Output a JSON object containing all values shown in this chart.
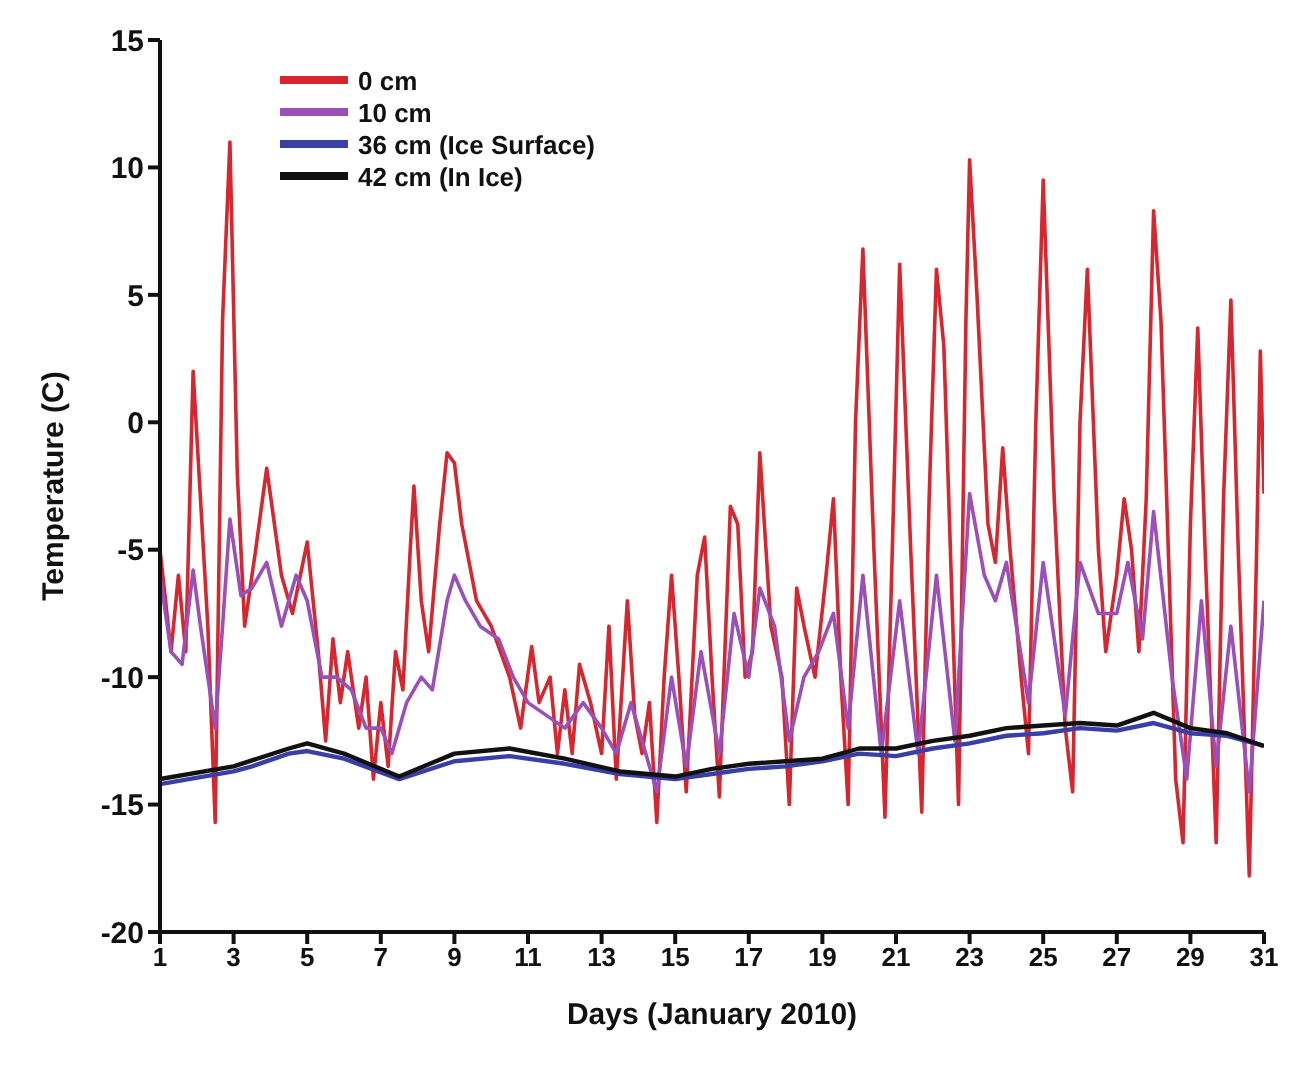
{
  "chart_data": {
    "type": "line",
    "xlabel": "Days (January 2010)",
    "ylabel": "Temperature (C)",
    "xlim": [
      1,
      31
    ],
    "xticks": [
      1,
      3,
      5,
      7,
      9,
      11,
      13,
      15,
      17,
      19,
      21,
      23,
      25,
      27,
      29,
      31
    ],
    "ylim": [
      -20,
      15
    ],
    "yticks": [
      -20,
      -15,
      -10,
      -5,
      0,
      5,
      10,
      15
    ],
    "grid": false,
    "legend": "top left",
    "marker": "none",
    "line_style": "solid",
    "series": [
      {
        "name": "0 cm",
        "color": "#d7262e",
        "x": [
          1,
          1.3,
          1.5,
          1.7,
          1.9,
          2.1,
          2.3,
          2.5,
          2.7,
          2.9,
          3.1,
          3.3,
          3.6,
          3.9,
          4.3,
          4.6,
          5,
          5.3,
          5.5,
          5.7,
          5.9,
          6.1,
          6.4,
          6.6,
          6.8,
          7,
          7.2,
          7.4,
          7.6,
          7.8,
          7.9,
          8.1,
          8.3,
          8.6,
          8.8,
          9,
          9.2,
          9.6,
          10,
          10.5,
          10.8,
          11.1,
          11.3,
          11.6,
          11.8,
          12,
          12.2,
          12.4,
          12.7,
          13,
          13.2,
          13.4,
          13.7,
          13.9,
          14.1,
          14.3,
          14.5,
          14.7,
          14.9,
          15.1,
          15.3,
          15.6,
          15.8,
          16,
          16.2,
          16.5,
          16.7,
          16.9,
          17.1,
          17.3,
          17.6,
          17.9,
          18.1,
          18.3,
          18.5,
          18.8,
          19.1,
          19.3,
          19.5,
          19.7,
          19.9,
          20.1,
          20.4,
          20.7,
          20.9,
          21.1,
          21.4,
          21.7,
          21.9,
          22.1,
          22.3,
          22.5,
          22.7,
          22.9,
          23,
          23.2,
          23.5,
          23.7,
          23.9,
          24.1,
          24.4,
          24.6,
          24.8,
          25,
          25.3,
          25.6,
          25.8,
          26,
          26.2,
          26.5,
          26.7,
          27,
          27.2,
          27.4,
          27.6,
          27.8,
          28,
          28.2,
          28.4,
          28.6,
          28.8,
          29,
          29.2,
          29.4,
          29.7,
          29.9,
          30.1,
          30.3,
          30.6,
          30.8,
          30.9,
          31
        ],
        "values": [
          -5,
          -9,
          -6,
          -9,
          2,
          -3,
          -8,
          -15.7,
          4,
          11,
          -2,
          -8,
          -5,
          -1.8,
          -6,
          -7.5,
          -4.7,
          -9,
          -12.5,
          -8.5,
          -11,
          -9,
          -12,
          -10,
          -14,
          -11,
          -13.5,
          -9,
          -10.5,
          -5,
          -2.5,
          -7,
          -9,
          -4,
          -1.2,
          -1.6,
          -4,
          -7,
          -8,
          -10,
          -12,
          -8.8,
          -11,
          -10,
          -13,
          -10.5,
          -13,
          -9.5,
          -11,
          -13,
          -8,
          -14,
          -7,
          -11.5,
          -13,
          -11,
          -15.7,
          -10,
          -6,
          -10,
          -14.5,
          -6,
          -4.5,
          -10,
          -14.7,
          -3.3,
          -4,
          -10,
          -9,
          -1.2,
          -8,
          -10,
          -15,
          -6.5,
          -8,
          -10,
          -6,
          -3,
          -10,
          -15,
          0,
          6.8,
          -5,
          -15.5,
          -5,
          6.2,
          -5,
          -15.3,
          -3,
          6,
          3,
          -6,
          -15,
          4,
          10.3,
          5,
          -4,
          -5.5,
          -1,
          -5,
          -10,
          -13,
          0,
          9.5,
          -3,
          -12,
          -14.5,
          0,
          6,
          -5,
          -9,
          -6,
          -3,
          -5,
          -9,
          -3,
          8.3,
          4,
          -5,
          -14,
          -16.5,
          -4,
          3.7,
          -5,
          -16.5,
          -3,
          4.8,
          -5,
          -17.8,
          -5,
          2.8,
          -2.8
        ]
      },
      {
        "name": "10 cm",
        "color": "#9b4fb8",
        "x": [
          1,
          1.3,
          1.6,
          1.9,
          2.1,
          2.5,
          2.7,
          2.9,
          3.2,
          3.5,
          3.9,
          4.3,
          4.7,
          5,
          5.4,
          5.8,
          6.2,
          6.6,
          7,
          7.3,
          7.7,
          8.1,
          8.4,
          8.8,
          9,
          9.3,
          9.7,
          10.2,
          10.6,
          11,
          11.5,
          12,
          12.5,
          13,
          13.4,
          13.8,
          14.2,
          14.5,
          14.9,
          15.3,
          15.7,
          16.2,
          16.6,
          17,
          17.3,
          17.7,
          18.1,
          18.5,
          18.9,
          19.3,
          19.7,
          20.1,
          20.6,
          21.1,
          21.6,
          22.1,
          22.6,
          23,
          23.4,
          23.7,
          24,
          24.6,
          25,
          25.6,
          26,
          26.5,
          27,
          27.3,
          27.7,
          28,
          28.5,
          28.9,
          29.3,
          29.7,
          30.1,
          30.6,
          31
        ],
        "values": [
          -6,
          -9,
          -9.5,
          -5.8,
          -8,
          -12,
          -8,
          -3.8,
          -6.8,
          -6.5,
          -5.5,
          -8,
          -6,
          -7,
          -10,
          -10,
          -10.5,
          -12,
          -12,
          -13,
          -11,
          -10,
          -10.5,
          -7,
          -6,
          -7,
          -8,
          -8.5,
          -10,
          -11,
          -11.5,
          -12,
          -11,
          -12,
          -13,
          -11,
          -13,
          -14.5,
          -10,
          -13.5,
          -9,
          -13,
          -7.5,
          -10,
          -6.5,
          -8,
          -12.5,
          -10,
          -9,
          -7.5,
          -12,
          -6,
          -13,
          -7,
          -13,
          -6,
          -12.5,
          -2.8,
          -6,
          -7,
          -5.5,
          -11,
          -5.5,
          -11.5,
          -5.5,
          -7.5,
          -7.5,
          -5.5,
          -8.5,
          -3.5,
          -10,
          -14,
          -7,
          -13.5,
          -8,
          -14.5,
          -7
        ]
      },
      {
        "name": "36 cm (Ice Surface)",
        "color": "#3a3fa8",
        "x": [
          1,
          3,
          3.5,
          4.5,
          5,
          6,
          7.5,
          9,
          10.5,
          12,
          13.5,
          15,
          16,
          17,
          18,
          19,
          20,
          21,
          22,
          23,
          24,
          25,
          26,
          27,
          28,
          29,
          30,
          31
        ],
        "values": [
          -14.2,
          -13.7,
          -13.5,
          -13,
          -12.9,
          -13.2,
          -14,
          -13.3,
          -13.1,
          -13.4,
          -13.8,
          -14,
          -13.8,
          -13.6,
          -13.5,
          -13.3,
          -13,
          -13.1,
          -12.8,
          -12.6,
          -12.3,
          -12.2,
          -12,
          -12.1,
          -11.8,
          -12.2,
          -12.3,
          -12.7
        ]
      },
      {
        "name": "42 cm (In Ice)",
        "color": "#111111",
        "x": [
          1,
          3,
          4.5,
          5,
          6,
          7.5,
          9,
          10.5,
          12,
          13.5,
          15,
          16,
          17,
          18,
          19,
          20,
          21,
          22,
          23,
          24,
          25,
          26,
          27,
          28,
          29,
          30,
          31
        ],
        "values": [
          -14,
          -13.5,
          -12.8,
          -12.6,
          -13,
          -13.9,
          -13,
          -12.8,
          -13.2,
          -13.7,
          -13.9,
          -13.6,
          -13.4,
          -13.3,
          -13.2,
          -12.8,
          -12.8,
          -12.5,
          -12.3,
          -12,
          -11.9,
          -11.8,
          -11.9,
          -11.4,
          -12,
          -12.2,
          -12.7
        ]
      }
    ]
  }
}
